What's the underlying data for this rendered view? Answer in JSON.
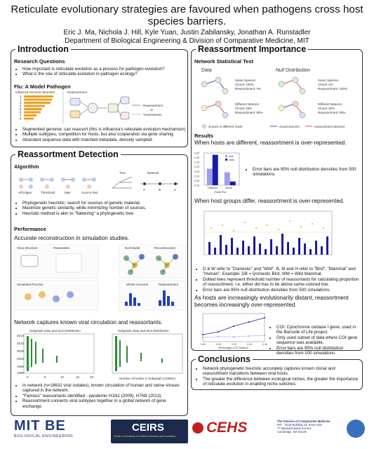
{
  "header": {
    "title_line1": "Reticulate evolutionary strategies are favoured when pathogens cross host",
    "title_line2": "species barriers.",
    "authors": "Eric J. Ma, Nichola J. Hill, Kyle Yuan, Justin Zabilansky, Jonathan A. Runstadler",
    "department": "Department of Biological Engineering & Division of Comparative Medicine, MIT"
  },
  "intro": {
    "heading": "Introduction",
    "rq_heading": "Research Questions",
    "rq_items": [
      "How important is reticulate evolution as a process for pathogen evolution?",
      "What is the role of reticulate evolution in pathogen ecology?"
    ],
    "flu_heading": "Flu: A Model Pathogen",
    "fig_influenza_label": "Influenza Genome Structure",
    "fig_reassortment_label": "Reassortment",
    "fig_reassortment_or": "Reassortment",
    "fig_or": "or",
    "fig_transmission": "Transmission",
    "segment_numbers": [
      "1",
      "2",
      "3",
      "4",
      "5",
      "6",
      "7",
      "8"
    ],
    "bullets": [
      "Segmented genome; can reassort (this is influenza's reticulate evolution mechanism)",
      "Multiple subtypes, competition for hosts, but also cooperation via gene sharing.",
      "Abundant sequence data with matched metadata, densely sampled."
    ]
  },
  "detection": {
    "heading": "Reassortment Detection",
    "algo_heading": "Algorithm",
    "algo_steps": [
      "All Edges",
      "Threshold",
      "Max",
      "Source Pair"
    ],
    "tree_label": "Tree",
    "network_label": "Network",
    "network_nodes": [
      "A",
      "B",
      "C"
    ],
    "bullets": [
      "Phylogenetic heuristic: search for sources of genetic material.",
      "Maximize genetic similarity, while minimizing number of sources.",
      "Heuristic method is akin to \"flattening\" a phylogenetic tree."
    ],
    "perf_heading": "Performance",
    "perf_text": "Accurate reconstruction in simulation studies.",
    "perf_fig_labels": [
      "Virus Structure",
      "Parameters",
      "Null Model",
      "Reconstruction",
      "Simulated Process",
      "Whole Genome",
      "Reassortment"
    ],
    "captures_text": "Network captures known viral circulation and reassortants.",
    "subgraph_title": "Subgraph Data and Size Distribution",
    "subgraph_xlabel": "Number of Nodes in Subgraph (n18961)",
    "subgraph_ylabel": "Dates of Isolation",
    "subgraph_years": [
      "2014",
      "2010",
      "2005",
      "2000",
      "1995",
      "1990"
    ],
    "subgraph_xticks": [
      "0",
      "5",
      "10",
      "15",
      "20"
    ],
    "bullets2": [
      "In network (n=18632 viral isolates), known circulation of human and swine viruses captured in the network.",
      "\"Famous\" reassortants identified - pandemic H1N1 (2009), H7N9 (2013).",
      "Reassortment connects viral subtypes together in a global network of gene exchange."
    ]
  },
  "importance": {
    "heading": "Reassortment Importance",
    "nst_heading": "Network Statistical Test",
    "data_label": "Data",
    "null_label": "Null Distribution",
    "data_same": [
      "Same Species",
      "Clonal: 100%",
      "Reassortment: 0%"
    ],
    "data_diff": [
      "Different Species",
      "Clonal: 20%",
      "Reassortment: 80%"
    ],
    "null_same": [
      "Same Species",
      "Clonal: 0%",
      "Reassortment: 100%"
    ],
    "null_diff": [
      "Different Species",
      "Clonal: 50%",
      "Reassortment: 50%"
    ],
    "legend_viruses": "viruses in different hosts",
    "legend_clonal": "clonal descent",
    "legend_reassortment": "reassortment descent",
    "results_heading": "Results",
    "result1": "When hosts are different, reassortment is over-represented.",
    "chart1_bullet": "Error bars are 95% null distribution densities from 500 simulations.",
    "result2": "When host groups differ, reassortment is over-represented.",
    "bullets3": [
      "D & W refer to \"Domestic\" and \"Wild\". B, M and H refer to \"Bird\", \"Mammal\" and \"Human\". Example: DB = Domestic Bird, WM = Wild Mammal.",
      "Dotted lines represent threshold number of reassortants for calculating proportion of reassortment, i.e. either dot has to be above same-colored line.",
      "Error bars are 95% null distribution densities from 500 simulations."
    ],
    "result3": "As hosts are increasingly evolutionarily distant, reassortment becomes increasingly over-represented.",
    "bullets4": [
      "COI: Cytochrome oxidase I gene, used in the Barcode of Life project.",
      "Only used subset of data where COI gene sequence was available.",
      "Error bars are 95% null distribution densities from 100 simulations."
    ]
  },
  "conclusions": {
    "heading": "Conclusions",
    "items": [
      "Network phylogenetic heuristic accurately captures known clonal and reassortment transitions between viral hosts.",
      "The greater the difference between ecological niches, the greater the importance of reticulate evolution in enabling niche switches."
    ]
  },
  "footer": {
    "mitbe_main": "MIT BE",
    "mitbe_sub": "BIOLOGICAL ENGINEERING",
    "ceirs": "CEIRS",
    "ceirs_sub": "Centers of Excellence for Influenza Research and Surveillance",
    "cehs": "CEHS",
    "dcm_lines": [
      "The Division of Comparative Medicine",
      "MIT · DCM Building 16, Room 825",
      "77 Massachusetts Avenue",
      "Cambridge, MA 02139"
    ]
  },
  "colors": {
    "accent": "#1a1aa8",
    "ligh": "#9d9df0",
    "orange": "#f0a020",
    "blue_dark": "#1f3fbf"
  },
  "chart_data": [
    {
      "type": "bar",
      "categories": [
        "Different",
        "Same"
      ],
      "series": [
        {
          "name": "Null",
          "values": [
            0.18,
            0.14
          ]
        },
        {
          "name": "Data",
          "values": [
            0.33,
            0.04
          ]
        }
      ],
      "xlabel": "Hosts Pair",
      "ylabel": "Proportion Reassortant",
      "yticks": [
        "0.00",
        "0.05",
        "0.10",
        "0.15",
        "0.20",
        "0.25",
        "0.30",
        "0.35"
      ],
      "ylim": [
        0,
        0.35
      ]
    },
    {
      "type": "line",
      "x": [
        0.0,
        0.05,
        0.1,
        0.15,
        0.2
      ],
      "series": [
        {
          "name": "Data",
          "values": [
            0.25,
            0.35,
            0.55,
            0.7,
            0.85
          ]
        },
        {
          "name": "Null",
          "values": [
            0.15,
            0.18,
            0.17,
            0.2,
            0.22
          ]
        }
      ],
      "xlabel": "Percentage COI Distance",
      "ylabel": "Proportion Reassortant",
      "xticks": [
        "0.00",
        "0.05",
        "0.10",
        "0.15",
        "0.20"
      ],
      "ylim": [
        0,
        1
      ]
    }
  ]
}
